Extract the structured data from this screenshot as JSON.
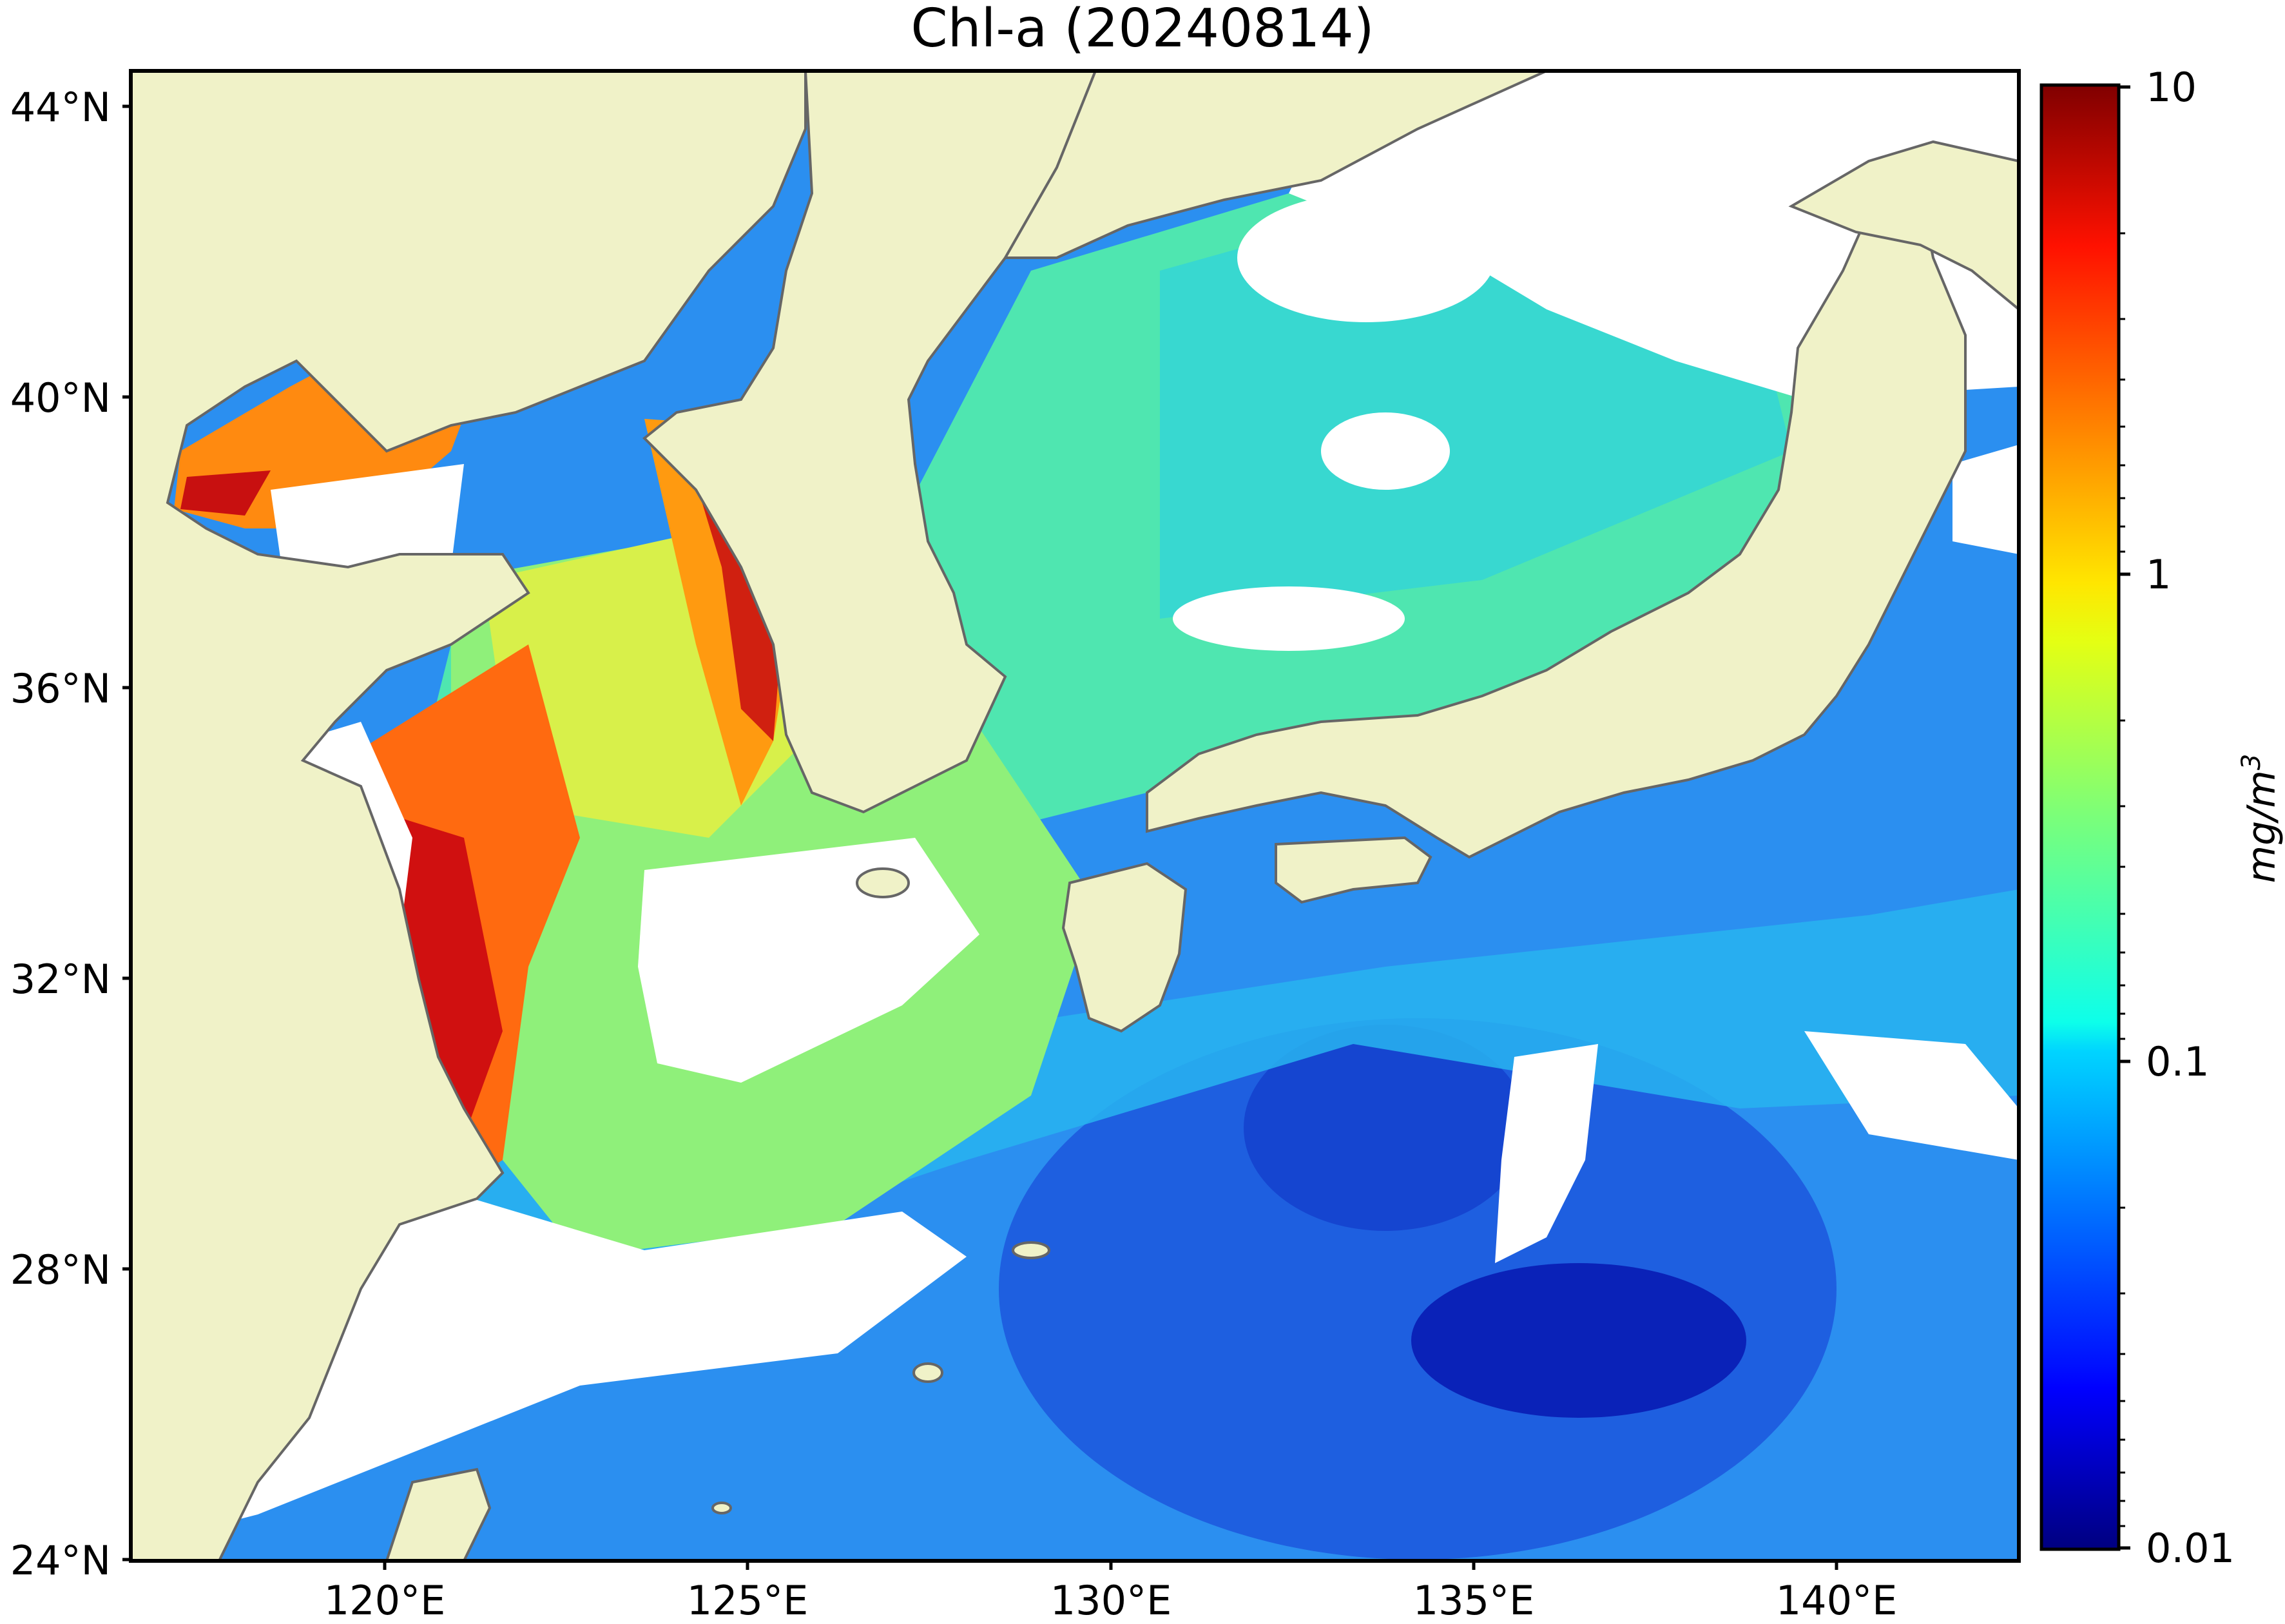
{
  "title": "Chl-a (20240814)",
  "map": {
    "lat_ticks": [
      "44°N",
      "40°N",
      "36°N",
      "32°N",
      "28°N",
      "24°N"
    ],
    "lon_ticks": [
      "120°E",
      "125°E",
      "130°E",
      "135°E",
      "140°E"
    ],
    "extent": {
      "lon_min": 117,
      "lon_max": 143,
      "lat_min": 24,
      "lat_max": 44.5
    },
    "land_color": "#f0f2c8",
    "cloud_color": "#ffffff",
    "coastline_color": "#666666"
  },
  "colorbar": {
    "ticks": [
      "10",
      "1",
      "0.1",
      "0.01"
    ],
    "unit": "mg/m",
    "unit_exp": "3",
    "scale": "log",
    "range": [
      0.01,
      10
    ],
    "colormap": "jet"
  }
}
